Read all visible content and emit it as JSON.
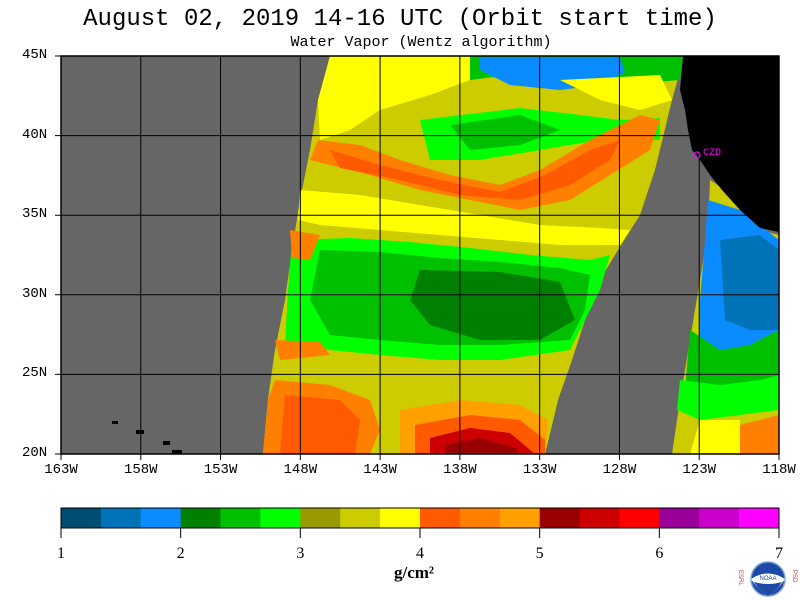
{
  "title": "August 02, 2019  14-16 UTC  (Orbit start time)",
  "subtitle": "Water Vapor (Wentz algorithm)",
  "map": {
    "lon_range": [
      -163,
      -118
    ],
    "lat_range": [
      20,
      45
    ],
    "lat_labels": [
      "45N",
      "40N",
      "35N",
      "30N",
      "25N",
      "20N"
    ],
    "lon_labels": [
      "163W",
      "158W",
      "153W",
      "148W",
      "143W",
      "138W",
      "133W",
      "128W",
      "123W",
      "118W"
    ],
    "land_color": "#000000",
    "nodata_color": "#666666",
    "station_label": "CZD"
  },
  "colorbar": {
    "ticks": [
      "1",
      "2",
      "3",
      "4",
      "5",
      "6",
      "7"
    ],
    "unit": "g/cm²",
    "colors": [
      "#004d73",
      "#0073b8",
      "#0a8cff",
      "#008000",
      "#00c000",
      "#00ff00",
      "#999900",
      "#cccc00",
      "#ffff00",
      "#ff5a00",
      "#ff7f00",
      "#ffa000",
      "#990000",
      "#cc0000",
      "#ff0000",
      "#990099",
      "#cc00cc",
      "#ff00ff"
    ]
  },
  "logo": {
    "left_letters": "ESRL",
    "right_letters": "PSD",
    "center": "NOAA"
  }
}
